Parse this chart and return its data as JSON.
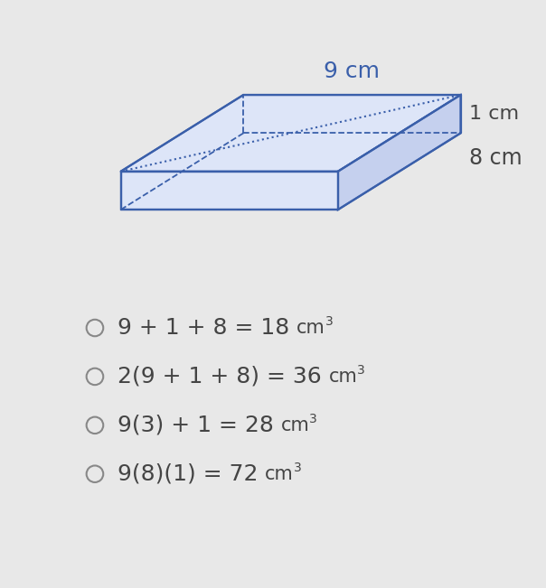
{
  "bg_color": "#e8e8e8",
  "box_color": "#3a5faa",
  "label_9cm": "9 cm",
  "label_1cm": "1 cm",
  "label_8cm": "8 cm",
  "options": [
    "9 + 1 + 8 = 18 cm³",
    "2(9 + 1 + 8) = 36 cm³",
    "9(3) + 1 = 28 cm³",
    "9(8)(1) = 72 cm³"
  ],
  "options_main": [
    "9 + 1 + 8 = 18 ",
    "2(9 + 1 + 8) = 36 ",
    "9(3) + 1 = 28 ",
    "9(8)(1) = 72 "
  ],
  "options_unit": [
    "cm",
    "cm",
    "cm",
    "cm"
  ],
  "options_sup": [
    "3",
    "3",
    "3",
    "3"
  ],
  "circle_color": "#888888",
  "text_color": "#444444",
  "option_fontsize": 18,
  "label_fontsize": 16
}
